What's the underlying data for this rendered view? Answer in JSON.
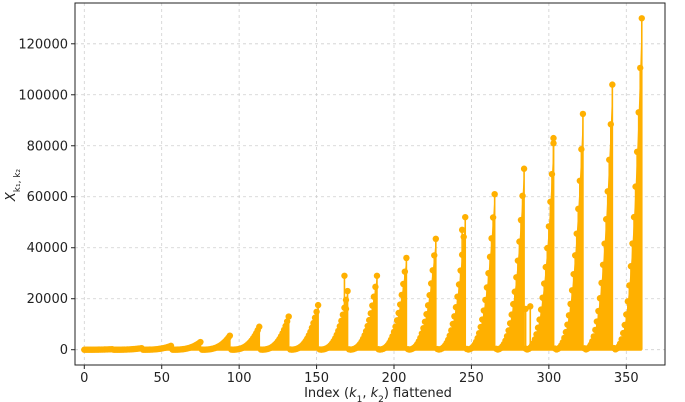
{
  "chart_data": {
    "type": "stem",
    "title": "",
    "xlabel": "Index (k₁, k₂) flattened",
    "ylabel": "X_{k₁, k₂}",
    "xlim": [
      -6,
      375
    ],
    "ylim": [
      -6000,
      136000
    ],
    "x_ticks": [
      0,
      50,
      100,
      150,
      200,
      250,
      300,
      350
    ],
    "y_ticks": [
      0,
      20000,
      40000,
      60000,
      80000,
      100000,
      120000
    ],
    "x_tick_labels": [
      "0",
      "50",
      "100",
      "150",
      "200",
      "250",
      "300",
      "350"
    ],
    "y_tick_labels": [
      "0",
      "20000",
      "40000",
      "60000",
      "80000",
      "100000",
      "120000"
    ],
    "grid": true,
    "color": "#FFB000",
    "group_size": 19,
    "group_count": 19,
    "group_peaks": [
      200,
      600,
      1500,
      3000,
      5500,
      9000,
      13000,
      17500,
      23000,
      29000,
      36000,
      43500,
      52000,
      61000,
      71000,
      81000,
      92500,
      104000,
      130000
    ],
    "notes_extra_spikes": [
      {
        "x": 168,
        "y": 29000
      },
      {
        "x": 169,
        "y": 16000
      },
      {
        "x": 244,
        "y": 47000
      },
      {
        "x": 303,
        "y": 83000
      },
      {
        "x": 285,
        "y": 16000
      },
      {
        "x": 288,
        "y": 17000
      }
    ]
  },
  "axes": {
    "x_label_parts": {
      "prefix": "Index (",
      "k1": "k",
      "sub1": "1",
      "sep": ", ",
      "k2": "k",
      "sub2": "2",
      "suffix": ") flattened"
    },
    "y_label_parts": {
      "base": "X",
      "sub": "k₁, k₂"
    }
  }
}
